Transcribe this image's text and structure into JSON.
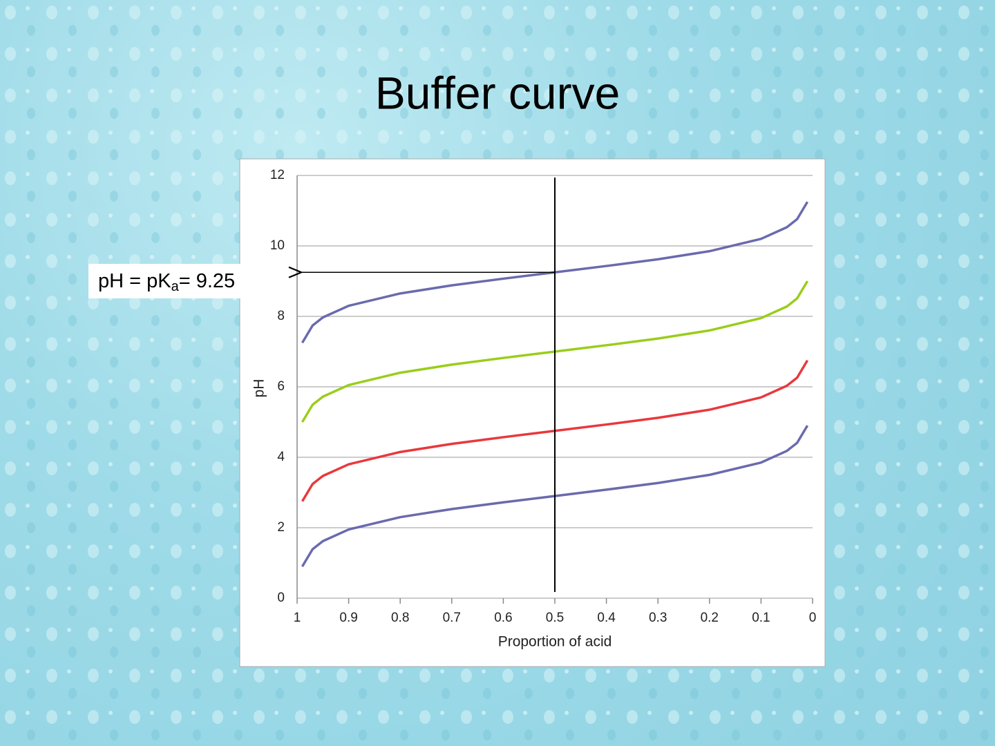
{
  "title": "Buffer curve",
  "chart_data": {
    "type": "line",
    "x_label": "Proportion of acid",
    "y_label": "pH",
    "x": [
      0.99,
      0.97,
      0.95,
      0.9,
      0.8,
      0.7,
      0.6,
      0.5,
      0.4,
      0.3,
      0.2,
      0.1,
      0.05,
      0.03,
      0.01
    ],
    "series": [
      {
        "color": "#6a6aae",
        "values": [
          7.25,
          7.74,
          7.97,
          8.3,
          8.65,
          8.88,
          9.07,
          9.25,
          9.43,
          9.62,
          9.85,
          10.2,
          10.53,
          10.76,
          11.25
        ]
      },
      {
        "color": "#9acd1a",
        "values": [
          5.0,
          5.49,
          5.72,
          6.05,
          6.4,
          6.63,
          6.82,
          7.0,
          7.18,
          7.37,
          7.6,
          7.95,
          8.28,
          8.51,
          9.0
        ]
      },
      {
        "color": "#e8383d",
        "values": [
          2.75,
          3.24,
          3.47,
          3.8,
          4.15,
          4.38,
          4.57,
          4.75,
          4.93,
          5.12,
          5.35,
          5.7,
          6.03,
          6.26,
          6.75
        ]
      },
      {
        "color": "#6a6aae",
        "values": [
          0.9,
          1.39,
          1.62,
          1.95,
          2.3,
          2.53,
          2.72,
          2.9,
          3.08,
          3.27,
          3.5,
          3.85,
          4.18,
          4.41,
          4.9
        ]
      }
    ],
    "xlim": [
      1,
      0
    ],
    "xticks": [
      1,
      0.9,
      0.8,
      0.7,
      0.6,
      0.5,
      0.4,
      0.3,
      0.2,
      0.1,
      0
    ],
    "ylim": [
      0,
      12
    ],
    "yticks": [
      0,
      2,
      4,
      6,
      8,
      10,
      12
    ],
    "grid": true,
    "vline_x": 0.5,
    "annotation": {
      "text": "pH = pK",
      "subscript": "a",
      "text_after": "= 9.25",
      "y": 9.25
    }
  }
}
